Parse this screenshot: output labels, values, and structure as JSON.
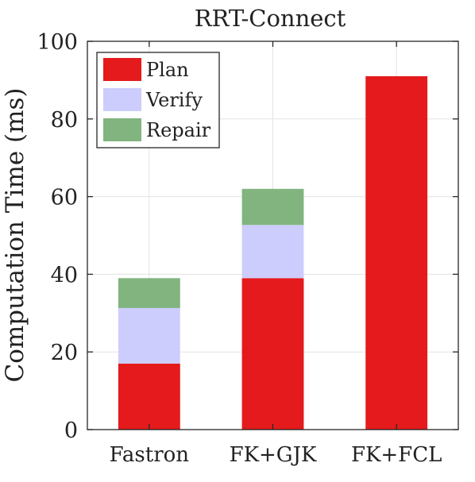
{
  "chart_data": {
    "type": "bar",
    "stacked": true,
    "title": "RRT-Connect",
    "xlabel": "",
    "ylabel": "Computation Time (ms)",
    "ylim": [
      0,
      100
    ],
    "yticks": [
      0,
      20,
      40,
      60,
      80,
      100
    ],
    "grid": true,
    "legend_position": "top-left",
    "categories": [
      "Fastron",
      "FK+GJK",
      "FK+FCL"
    ],
    "series": [
      {
        "name": "Plan",
        "color": "#e41a1c",
        "values": [
          17,
          39,
          91
        ]
      },
      {
        "name": "Verify",
        "color": "#cccdfc",
        "values": [
          14.3,
          13.7,
          0
        ]
      },
      {
        "name": "Repair",
        "color": "#82b47f",
        "values": [
          7.7,
          9.3,
          0
        ]
      }
    ]
  }
}
